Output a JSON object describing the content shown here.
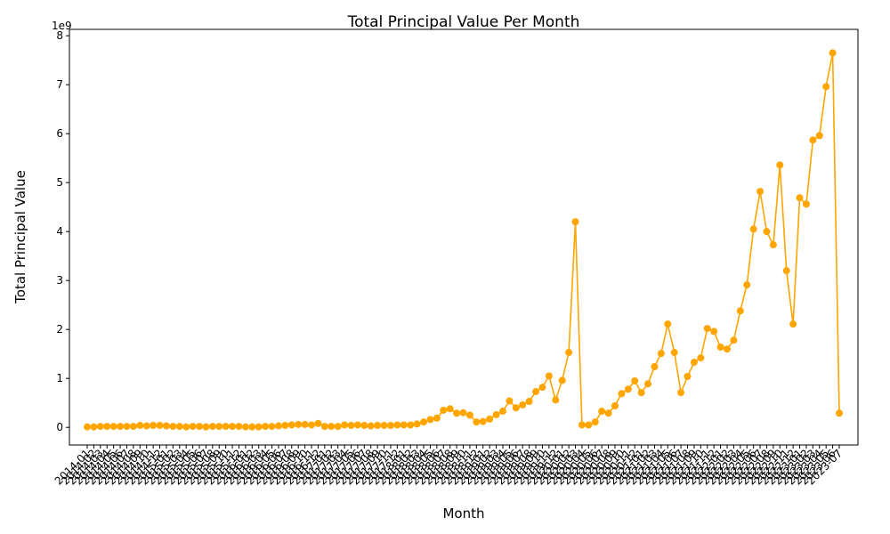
{
  "chart_data": {
    "type": "line",
    "title": "Total Principal Value Per Month",
    "x_label": "Month",
    "y_label": "Total Principal Value",
    "y_offset_label": "1e9",
    "color": "#ffa500",
    "categories": [
      "2014-01",
      "2014-02",
      "2014-03",
      "2014-04",
      "2014-05",
      "2014-06",
      "2014-07",
      "2014-08",
      "2014-09",
      "2014-10",
      "2014-11",
      "2014-12",
      "2015-01",
      "2015-02",
      "2015-03",
      "2015-04",
      "2015-05",
      "2015-06",
      "2015-07",
      "2015-08",
      "2015-09",
      "2015-10",
      "2015-11",
      "2015-12",
      "2016-01",
      "2016-02",
      "2016-03",
      "2016-04",
      "2016-05",
      "2016-06",
      "2016-07",
      "2016-08",
      "2016-09",
      "2016-10",
      "2016-11",
      "2016-12",
      "2017-01",
      "2017-02",
      "2017-03",
      "2017-04",
      "2017-05",
      "2017-06",
      "2017-07",
      "2017-08",
      "2017-09",
      "2017-10",
      "2017-11",
      "2017-12",
      "2018-01",
      "2018-02",
      "2018-03",
      "2018-04",
      "2018-05",
      "2018-06",
      "2018-07",
      "2018-08",
      "2018-09",
      "2018-10",
      "2018-11",
      "2018-12",
      "2019-01",
      "2019-02",
      "2019-03",
      "2019-04",
      "2019-05",
      "2019-06",
      "2019-07",
      "2019-08",
      "2019-09",
      "2019-10",
      "2019-11",
      "2019-12",
      "2020-01",
      "2020-02",
      "2020-03",
      "2020-04",
      "2020-05",
      "2020-06",
      "2020-07",
      "2020-08",
      "2020-09",
      "2020-10",
      "2020-11",
      "2020-12",
      "2021-01",
      "2021-02",
      "2021-03",
      "2021-04",
      "2021-05",
      "2021-06",
      "2021-07",
      "2021-08",
      "2021-09",
      "2021-10",
      "2021-11",
      "2021-12",
      "2022-01",
      "2022-02",
      "2022-03",
      "2022-04",
      "2022-05",
      "2022-06",
      "2022-07",
      "2022-08",
      "2022-09",
      "2022-10",
      "2022-11",
      "2022-12",
      "2023-01",
      "2023-02",
      "2023-03",
      "2023-04",
      "2023-05",
      "2023-06",
      "2023-07"
    ],
    "values": [
      0.01,
      0.01,
      0.02,
      0.02,
      0.02,
      0.02,
      0.02,
      0.02,
      0.04,
      0.03,
      0.04,
      0.04,
      0.03,
      0.02,
      0.02,
      0.01,
      0.02,
      0.02,
      0.01,
      0.02,
      0.02,
      0.02,
      0.02,
      0.02,
      0.01,
      0.01,
      0.01,
      0.02,
      0.02,
      0.03,
      0.04,
      0.05,
      0.06,
      0.06,
      0.05,
      0.08,
      0.02,
      0.02,
      0.02,
      0.05,
      0.04,
      0.05,
      0.04,
      0.03,
      0.04,
      0.04,
      0.04,
      0.05,
      0.05,
      0.05,
      0.07,
      0.11,
      0.16,
      0.19,
      0.35,
      0.38,
      0.29,
      0.3,
      0.25,
      0.11,
      0.12,
      0.17,
      0.26,
      0.33,
      0.54,
      0.4,
      0.46,
      0.53,
      0.73,
      0.82,
      1.05,
      0.56,
      0.96,
      1.53,
      4.2,
      0.05,
      0.05,
      0.11,
      0.33,
      0.29,
      0.44,
      0.69,
      0.78,
      0.95,
      0.71,
      0.89,
      1.24,
      1.51,
      2.11,
      1.53,
      0.71,
      1.04,
      1.33,
      1.42,
      2.02,
      1.96,
      1.64,
      1.6,
      1.78,
      2.38,
      2.91,
      4.05,
      4.82,
      4.0,
      3.73,
      5.36,
      3.2,
      2.11,
      4.69,
      4.56,
      5.87,
      5.96,
      6.96,
      7.65,
      0.29
    ],
    "ylim": [
      -0.36,
      8.13
    ],
    "yticks": [
      0,
      1,
      2,
      3,
      4,
      5,
      6,
      7,
      8
    ]
  }
}
